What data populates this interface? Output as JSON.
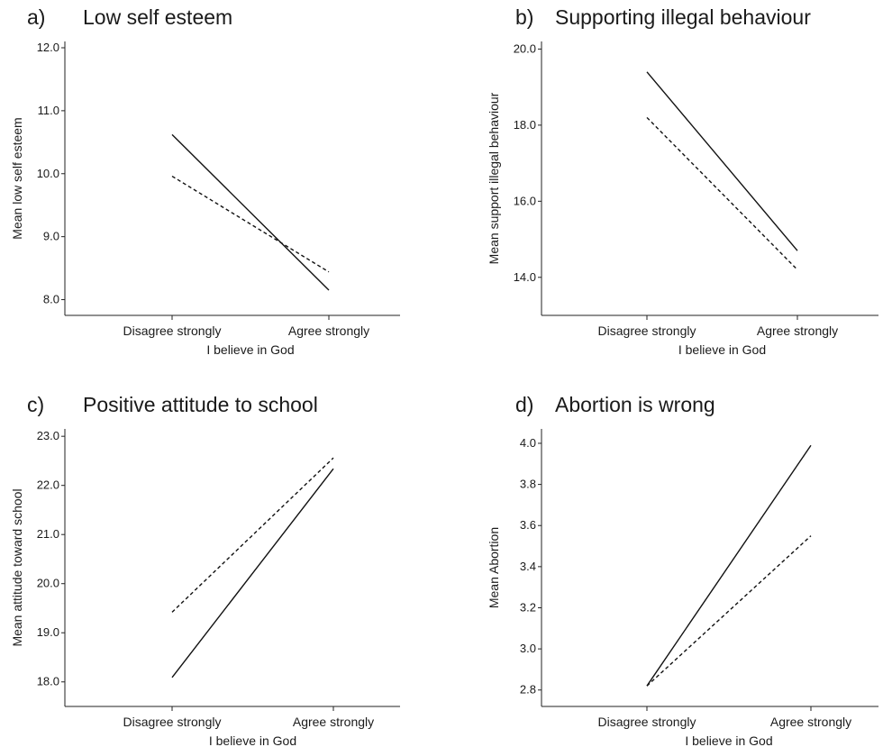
{
  "chart_data": [
    {
      "type": "line",
      "letter": "a)",
      "title": "Low self esteem",
      "xlabel": "I believe in God",
      "ylabel": "Mean low self esteem",
      "categories": [
        "Disagree strongly",
        "Agree strongly"
      ],
      "ylim": [
        7.75,
        12.1
      ],
      "yticks": [
        "8.0",
        "9.0",
        "10.0",
        "11.0",
        "12.0"
      ],
      "grid": false,
      "series": [
        {
          "style": "solid",
          "values": [
            10.62,
            8.15
          ]
        },
        {
          "style": "dashed",
          "values": [
            9.96,
            8.44
          ]
        }
      ]
    },
    {
      "type": "line",
      "letter": "b)",
      "title": "Supporting illegal behaviour",
      "xlabel": "I believe in God",
      "ylabel": "Mean support illegal behaviour",
      "categories": [
        "Disagree strongly",
        "Agree strongly"
      ],
      "ylim": [
        13.0,
        20.2
      ],
      "yticks": [
        "14.0",
        "16.0",
        "18.0",
        "20.0"
      ],
      "grid": false,
      "series": [
        {
          "style": "solid",
          "values": [
            19.4,
            14.7
          ]
        },
        {
          "style": "dashed",
          "values": [
            18.2,
            14.2
          ]
        }
      ]
    },
    {
      "type": "line",
      "letter": "c)",
      "title": "Positive attitude to school",
      "xlabel": "I believe in God",
      "ylabel": "Mean attitude toward school",
      "categories": [
        "Disagree strongly",
        "Agree strongly"
      ],
      "ylim": [
        17.5,
        23.15
      ],
      "yticks": [
        "18.0",
        "19.0",
        "20.0",
        "21.0",
        "22.0",
        "23.0"
      ],
      "grid": false,
      "series": [
        {
          "style": "solid",
          "values": [
            18.09,
            22.34
          ]
        },
        {
          "style": "dashed",
          "values": [
            19.42,
            22.56
          ]
        }
      ]
    },
    {
      "type": "line",
      "letter": "d)",
      "title": "Abortion is wrong",
      "xlabel": "I believe in God",
      "ylabel": "Mean Abortion",
      "categories": [
        "Disagree strongly",
        "Agree strongly"
      ],
      "ylim": [
        2.72,
        4.07
      ],
      "yticks": [
        "2.8",
        "3.0",
        "3.2",
        "3.4",
        "3.6",
        "3.8",
        "4.0"
      ],
      "grid": false,
      "series": [
        {
          "style": "solid",
          "values": [
            2.82,
            3.99
          ]
        },
        {
          "style": "dashed",
          "values": [
            2.82,
            3.55
          ]
        }
      ]
    }
  ]
}
